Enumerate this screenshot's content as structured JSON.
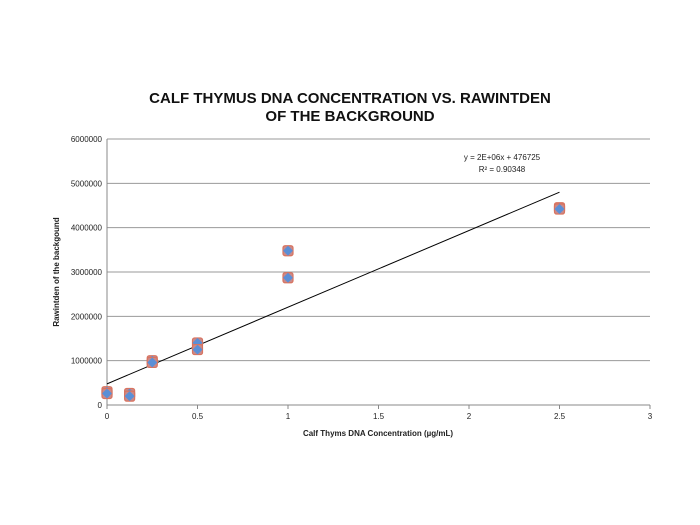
{
  "chart_data": {
    "type": "scatter",
    "title": [
      "CALF THYMUS DNA CONCENTRATION VS. RAWINTDEN",
      "OF THE BACKGROUND"
    ],
    "xlabel": "Calf Thyms DNA Concentration (µg/mL)",
    "ylabel": "Rawintden of the backgound",
    "xlim": [
      0,
      3
    ],
    "ylim": [
      0,
      6000000
    ],
    "xticks": [
      "0",
      "0.5",
      "1",
      "1.5",
      "2",
      "2.5",
      "3"
    ],
    "yticks": [
      "0",
      "1000000",
      "2000000",
      "3000000",
      "4000000",
      "5000000",
      "6000000"
    ],
    "grid": "horizontal",
    "points": [
      {
        "x": 0,
        "y": 300000
      },
      {
        "x": 0,
        "y": 260000
      },
      {
        "x": 0.125,
        "y": 260000
      },
      {
        "x": 0.125,
        "y": 200000
      },
      {
        "x": 0.25,
        "y": 1000000
      },
      {
        "x": 0.25,
        "y": 960000
      },
      {
        "x": 0.5,
        "y": 1400000
      },
      {
        "x": 0.5,
        "y": 1250000
      },
      {
        "x": 1,
        "y": 3480000
      },
      {
        "x": 1,
        "y": 2870000
      },
      {
        "x": 2.5,
        "y": 4450000
      },
      {
        "x": 2.5,
        "y": 4420000
      }
    ],
    "trendline": {
      "x": [
        0,
        2.5
      ],
      "y": [
        476725,
        4800000
      ],
      "equation": "y = 2E+06x + 476725",
      "r2": "R² = 0.90348"
    },
    "colors": {
      "marker_fill": "#5b8fd6",
      "marker_outline": "#d9735f",
      "trendline": "#000000",
      "grid": "#999999"
    }
  }
}
